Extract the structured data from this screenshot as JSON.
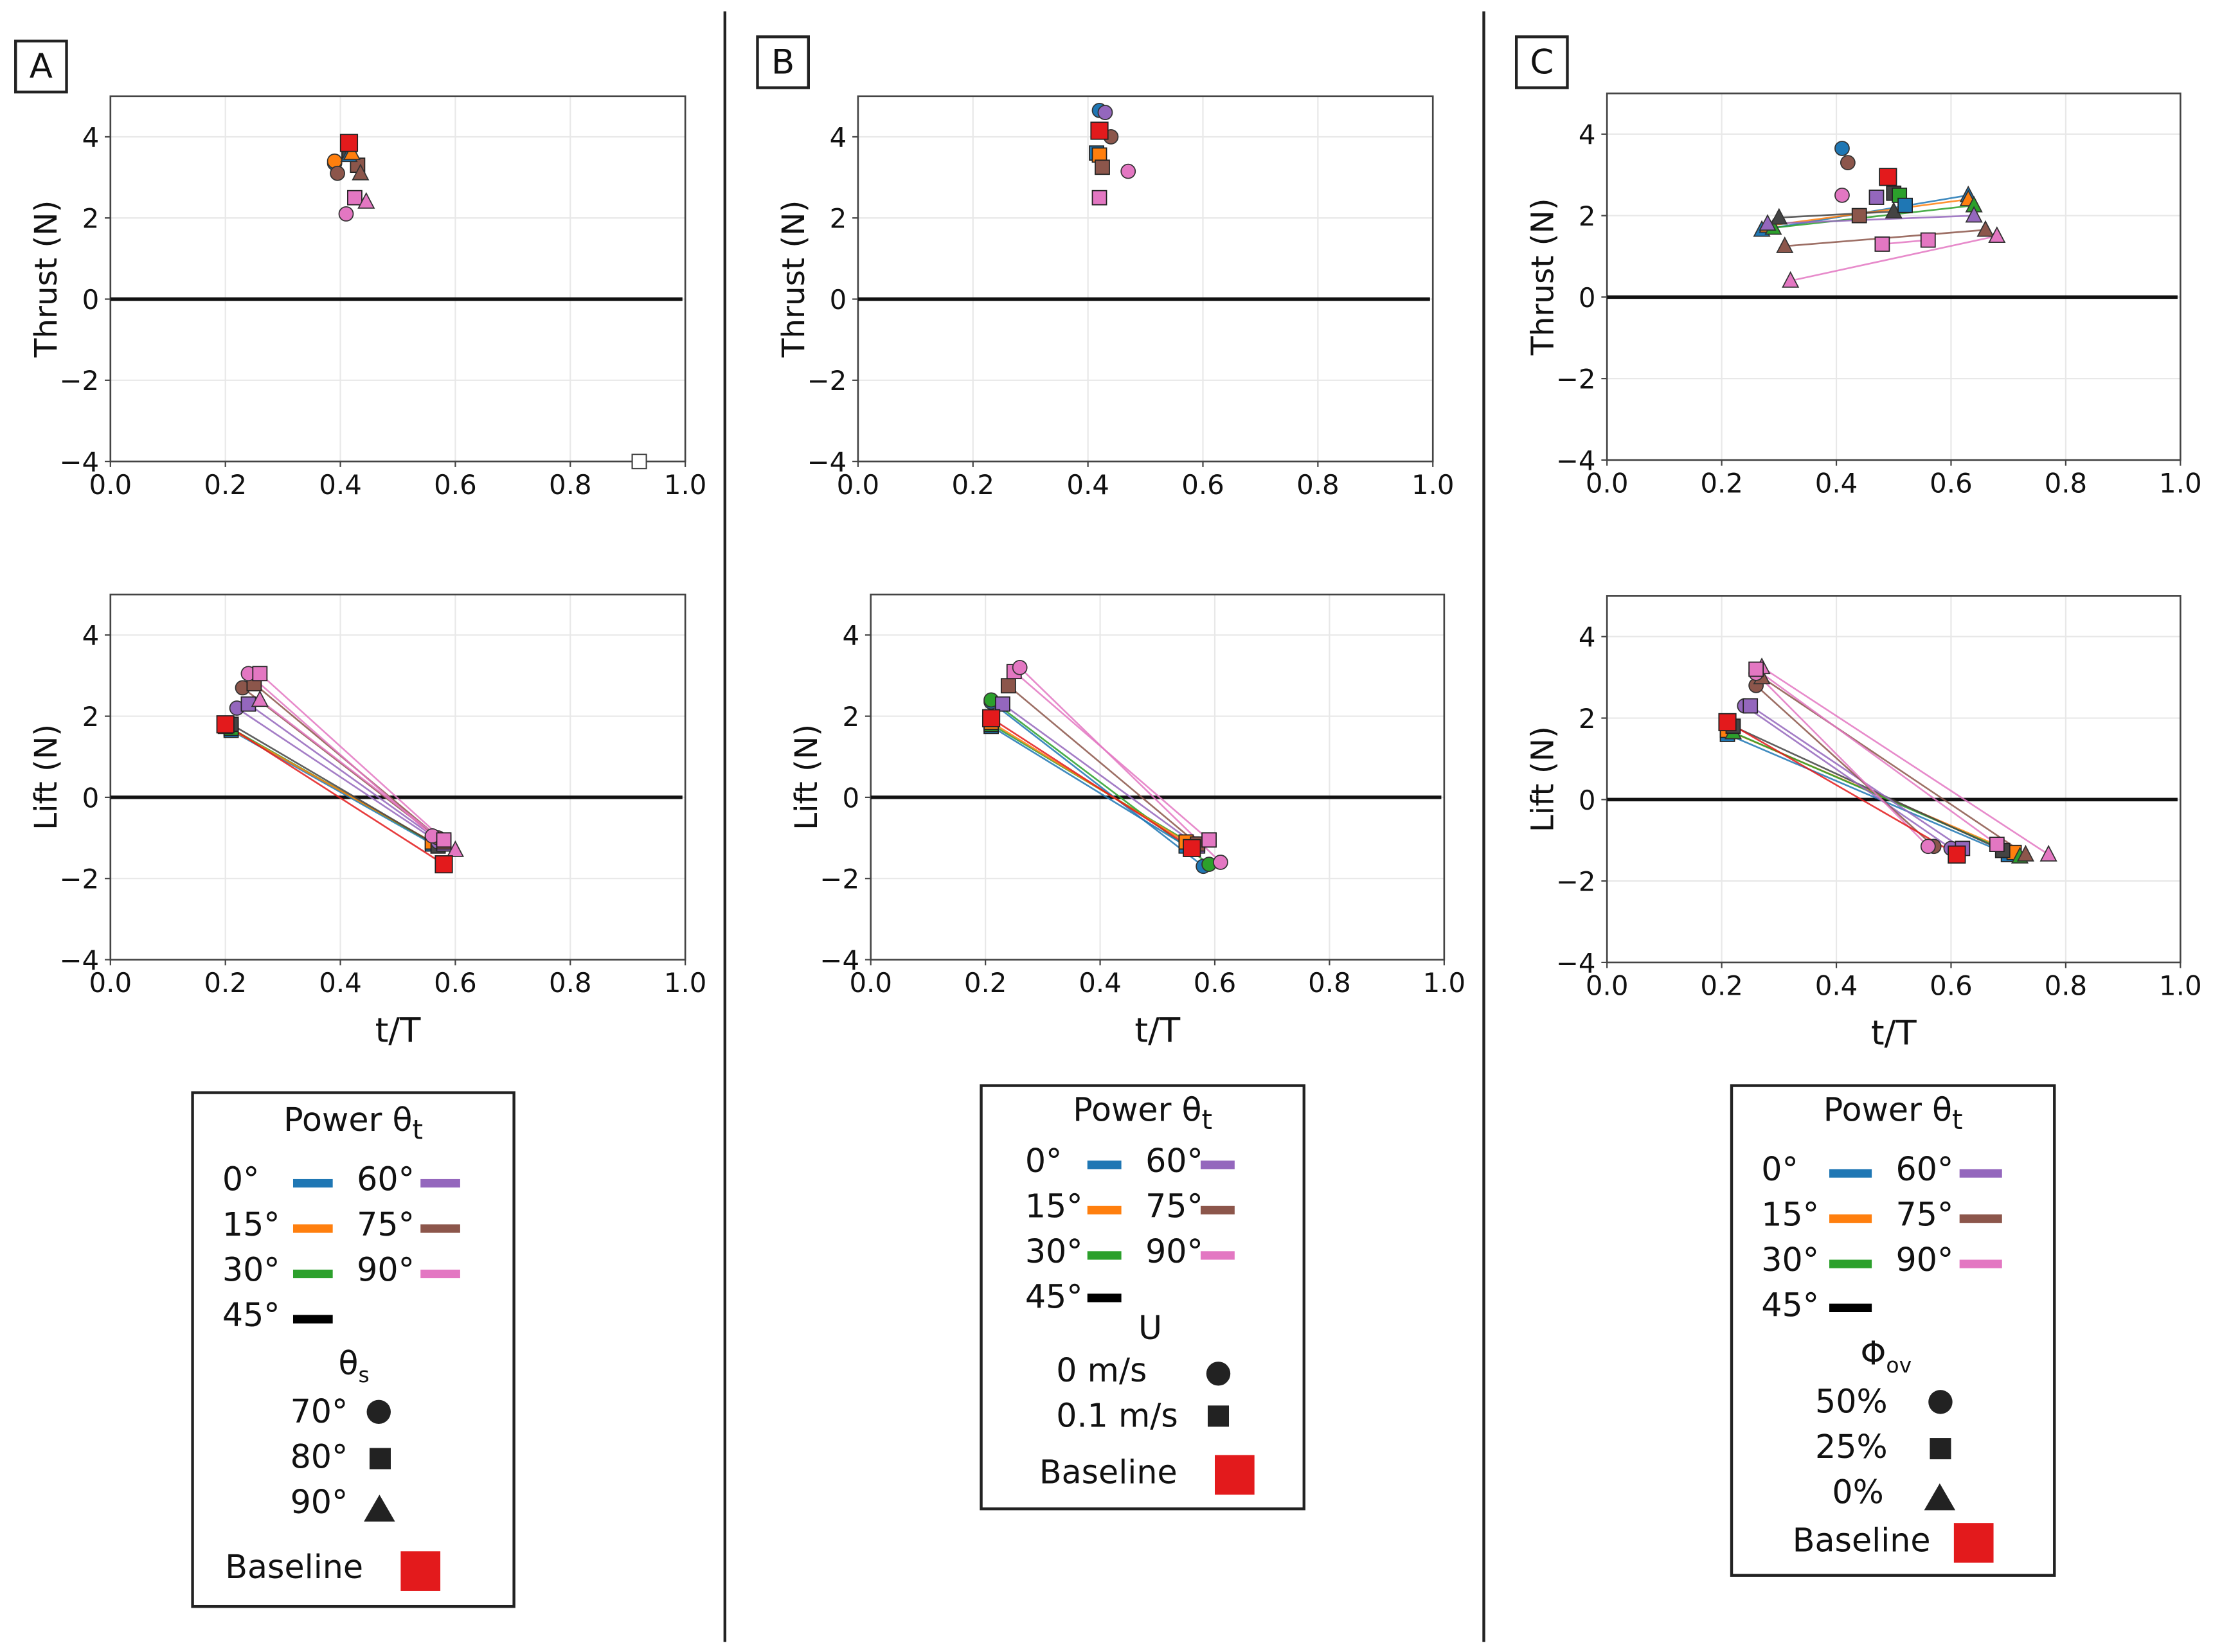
{
  "colors": {
    "0": "#1f77b4",
    "15": "#ff7f0e",
    "30": "#2ca02c",
    "45": "#444444",
    "60": "#9467bd",
    "75": "#8c564b",
    "90": "#e377c2",
    "baseline": "#e31a1c"
  },
  "panels": {
    "A": "A",
    "B": "B",
    "C": "C"
  },
  "axes": {
    "thrust_label": "Thrust (N)",
    "lift_label": "Lift (N)",
    "xlabel": "t/T",
    "xticks": [
      "0.0",
      "0.2",
      "0.4",
      "0.6",
      "0.8",
      "1.0"
    ],
    "yticks": [
      "4",
      "2",
      "0",
      "−2",
      "−4"
    ]
  },
  "legends": {
    "A": {
      "title": "Power θ",
      "title_sub": "t",
      "power": [
        "0°",
        "15°",
        "30°",
        "45°",
        "60°",
        "75°",
        "90°"
      ],
      "group_title": "θ",
      "group_sub": "s",
      "markers": [
        "70°",
        "80°",
        "90°"
      ],
      "baseline": "Baseline"
    },
    "B": {
      "title": "Power θ",
      "title_sub": "t",
      "power": [
        "0°",
        "15°",
        "30°",
        "45°",
        "60°",
        "75°",
        "90°"
      ],
      "group_title": "U",
      "markers": [
        "0 m/s",
        "0.1 m/s"
      ],
      "baseline": "Baseline"
    },
    "C": {
      "title": "Power θ",
      "title_sub": "t",
      "power": [
        "0°",
        "15°",
        "30°",
        "45°",
        "60°",
        "75°",
        "90°"
      ],
      "group_title": "Φ",
      "group_sub": "ov",
      "markers": [
        "50%",
        "25%",
        "0%"
      ],
      "baseline": "Baseline"
    }
  },
  "chart_data": [
    {
      "panel": "A",
      "type": "scatter",
      "ylabel": "Thrust (N)",
      "xlim": [
        0,
        1
      ],
      "ylim": [
        -4,
        5
      ],
      "grid": true,
      "points": [
        [
          0.39,
          3.35,
          "0",
          "o"
        ],
        [
          0.39,
          3.4,
          "15",
          "o"
        ],
        [
          0.395,
          3.1,
          "75",
          "o"
        ],
        [
          0.41,
          2.1,
          "90",
          "o"
        ],
        [
          0.415,
          3.65,
          "45",
          "s"
        ],
        [
          0.43,
          3.3,
          "75",
          "s"
        ],
        [
          0.425,
          2.5,
          "90",
          "s"
        ],
        [
          0.415,
          3.55,
          "0",
          "^"
        ],
        [
          0.42,
          3.6,
          "15",
          "^"
        ],
        [
          0.435,
          3.1,
          "75",
          "^"
        ],
        [
          0.445,
          2.4,
          "90",
          "^"
        ],
        [
          0.415,
          3.85,
          "baseline",
          "s"
        ]
      ],
      "open_points": [
        [
          0.92,
          -4
        ]
      ],
      "lines": []
    },
    {
      "panel": "A",
      "type": "line",
      "ylabel": "Lift (N)",
      "xlabel": "t/T",
      "xlim": [
        0,
        1
      ],
      "ylim": [
        -4,
        5
      ],
      "grid": true,
      "lines": [
        [
          0.21,
          1.65,
          0.56,
          -1.15,
          "0",
          "s"
        ],
        [
          0.21,
          1.7,
          0.57,
          -1.2,
          "30",
          "s"
        ],
        [
          0.2,
          1.75,
          0.56,
          -1.1,
          "15",
          "s"
        ],
        [
          0.21,
          1.8,
          0.57,
          -1.2,
          "45",
          "s"
        ],
        [
          0.22,
          2.2,
          0.57,
          -1.1,
          "60",
          "o"
        ],
        [
          0.24,
          2.3,
          0.58,
          -1.15,
          "60",
          "s"
        ],
        [
          0.23,
          2.7,
          0.57,
          -1.0,
          "75",
          "o"
        ],
        [
          0.25,
          2.8,
          0.58,
          -1.1,
          "75",
          "s"
        ],
        [
          0.24,
          3.05,
          0.56,
          -0.95,
          "90",
          "o"
        ],
        [
          0.26,
          3.05,
          0.58,
          -1.05,
          "90",
          "s"
        ],
        [
          0.26,
          2.4,
          0.6,
          -1.3,
          "90",
          "^"
        ],
        [
          0.2,
          1.8,
          0.58,
          -1.65,
          "baseline",
          "s"
        ]
      ],
      "points": []
    },
    {
      "panel": "B",
      "type": "scatter",
      "ylabel": "Thrust (N)",
      "xlim": [
        0,
        1
      ],
      "ylim": [
        -4,
        5
      ],
      "grid": true,
      "points": [
        [
          0.42,
          4.65,
          "0",
          "o"
        ],
        [
          0.43,
          4.6,
          "60",
          "o"
        ],
        [
          0.44,
          4.0,
          "75",
          "o"
        ],
        [
          0.47,
          3.15,
          "90",
          "o"
        ],
        [
          0.415,
          3.6,
          "0",
          "s"
        ],
        [
          0.42,
          3.55,
          "15",
          "s"
        ],
        [
          0.425,
          3.25,
          "75",
          "s"
        ],
        [
          0.42,
          2.5,
          "90",
          "s"
        ],
        [
          0.42,
          4.15,
          "baseline",
          "s"
        ]
      ],
      "lines": []
    },
    {
      "panel": "B",
      "type": "line",
      "ylabel": "Lift (N)",
      "xlabel": "t/T",
      "xlim": [
        0,
        1
      ],
      "ylim": [
        -4,
        5
      ],
      "grid": true,
      "lines": [
        [
          0.21,
          2.35,
          0.58,
          -1.7,
          "0",
          "o"
        ],
        [
          0.21,
          2.4,
          0.59,
          -1.65,
          "30",
          "o"
        ],
        [
          0.21,
          1.75,
          0.55,
          -1.2,
          "0",
          "s"
        ],
        [
          0.21,
          1.8,
          0.56,
          -1.15,
          "30",
          "s"
        ],
        [
          0.21,
          1.85,
          0.55,
          -1.1,
          "15",
          "s"
        ],
        [
          0.23,
          2.3,
          0.57,
          -1.2,
          "60",
          "s"
        ],
        [
          0.24,
          2.75,
          0.57,
          -1.15,
          "75",
          "s"
        ],
        [
          0.25,
          3.1,
          0.59,
          -1.05,
          "90",
          "s"
        ],
        [
          0.26,
          3.2,
          0.61,
          -1.6,
          "90",
          "o"
        ],
        [
          0.21,
          1.95,
          0.56,
          -1.25,
          "baseline",
          "s"
        ]
      ],
      "points": []
    },
    {
      "panel": "C",
      "type": "line",
      "ylabel": "Thrust (N)",
      "xlim": [
        0,
        1
      ],
      "ylim": [
        -4,
        5
      ],
      "grid": true,
      "lines": [
        [
          0.27,
          1.65,
          0.63,
          2.5,
          "0",
          "^"
        ],
        [
          0.28,
          1.75,
          0.63,
          2.4,
          "15",
          "^"
        ],
        [
          0.29,
          1.7,
          0.64,
          2.25,
          "30",
          "^"
        ],
        [
          0.3,
          1.95,
          0.5,
          2.1,
          "45",
          "^"
        ],
        [
          0.28,
          1.8,
          0.64,
          2.0,
          "60",
          "^"
        ],
        [
          0.31,
          1.25,
          0.66,
          1.65,
          "75",
          "^"
        ],
        [
          0.48,
          1.3,
          0.56,
          1.4,
          "90",
          "s"
        ],
        [
          0.32,
          0.4,
          0.68,
          1.5,
          "90",
          "^"
        ]
      ],
      "points": [
        [
          0.41,
          3.65,
          "0",
          "o"
        ],
        [
          0.42,
          3.3,
          "75",
          "o"
        ],
        [
          0.41,
          2.5,
          "90",
          "o"
        ],
        [
          0.47,
          2.45,
          "60",
          "s"
        ],
        [
          0.5,
          2.55,
          "45",
          "s"
        ],
        [
          0.51,
          2.5,
          "30",
          "s"
        ],
        [
          0.52,
          2.25,
          "0",
          "s"
        ],
        [
          0.44,
          2.0,
          "75",
          "s"
        ],
        [
          0.49,
          2.95,
          "baseline",
          "s"
        ]
      ]
    },
    {
      "panel": "C",
      "type": "line",
      "ylabel": "Lift (N)",
      "xlabel": "t/T",
      "xlim": [
        0,
        1
      ],
      "ylim": [
        -4,
        5
      ],
      "grid": true,
      "lines": [
        [
          0.21,
          1.6,
          0.7,
          -1.35,
          "0",
          "s"
        ],
        [
          0.21,
          1.7,
          0.71,
          -1.3,
          "15",
          "s"
        ],
        [
          0.22,
          1.65,
          0.72,
          -1.4,
          "30",
          "^"
        ],
        [
          0.22,
          1.8,
          0.69,
          -1.25,
          "45",
          "s"
        ],
        [
          0.24,
          2.3,
          0.6,
          -1.2,
          "60",
          "o"
        ],
        [
          0.25,
          2.3,
          0.62,
          -1.2,
          "60",
          "s"
        ],
        [
          0.26,
          2.8,
          0.57,
          -1.15,
          "75",
          "o"
        ],
        [
          0.27,
          3.0,
          0.73,
          -1.35,
          "75",
          "^"
        ],
        [
          0.26,
          3.1,
          0.56,
          -1.15,
          "90",
          "o"
        ],
        [
          0.27,
          3.25,
          0.77,
          -1.35,
          "90",
          "^"
        ],
        [
          0.26,
          3.2,
          0.68,
          -1.1,
          "90",
          "s"
        ],
        [
          0.21,
          1.9,
          0.61,
          -1.35,
          "baseline",
          "s"
        ]
      ],
      "points": []
    }
  ]
}
